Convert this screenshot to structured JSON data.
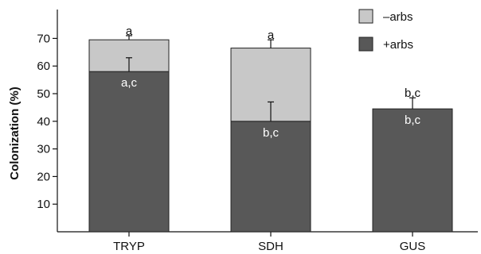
{
  "chart_data": {
    "type": "bar",
    "stacked": true,
    "ylabel": "Colonization (%)",
    "xlabel": "",
    "ylim": [
      0,
      80
    ],
    "yticks": [
      10,
      20,
      30,
      40,
      50,
      60,
      70
    ],
    "categories": [
      "TRYP",
      "SDH",
      "GUS"
    ],
    "series": [
      {
        "name": "+arbs",
        "values": [
          58,
          40,
          44.5
        ],
        "errors": [
          5,
          7,
          4
        ],
        "color": "#585858"
      },
      {
        "name": "–arbs",
        "values": [
          11.5,
          26.5,
          0
        ],
        "errors": [
          1.5,
          3,
          0
        ],
        "color": "#c8c8c8"
      }
    ],
    "annotations": {
      "top": [
        "a",
        "a",
        "b,c"
      ],
      "inner": [
        "a,c",
        "b,c",
        "b,c"
      ]
    },
    "legend": {
      "position": "top-right"
    },
    "grid": false
  }
}
